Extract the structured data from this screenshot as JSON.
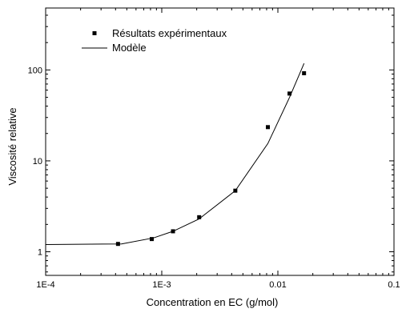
{
  "chart_data": {
    "type": "scatter",
    "xlabel": "Concentration en EC (g/mol)",
    "ylabel": "Viscosité relative",
    "xscale": "log",
    "yscale": "log",
    "xlim": [
      0.0001,
      0.1
    ],
    "ylim": [
      0.55,
      480
    ],
    "x_ticks": [
      {
        "value": 0.0001,
        "label": "1E-4"
      },
      {
        "value": 0.001,
        "label": "1E-3"
      },
      {
        "value": 0.01,
        "label": "0.01"
      },
      {
        "value": 0.1,
        "label": "0.1"
      }
    ],
    "y_ticks": [
      {
        "value": 1,
        "label": "1"
      },
      {
        "value": 10,
        "label": "10"
      },
      {
        "value": 100,
        "label": "100"
      }
    ],
    "legend_position": "top-left",
    "series": [
      {
        "name": "Résultats expérimentaux",
        "style": "markers",
        "x": [
          0.00042,
          0.00082,
          0.00125,
          0.0021,
          0.0043,
          0.0082,
          0.0126,
          0.0168
        ],
        "y": [
          1.22,
          1.38,
          1.68,
          2.4,
          4.7,
          23.5,
          55,
          92
        ]
      },
      {
        "name": "Modèle",
        "style": "line",
        "x": [
          0.0001,
          0.00045,
          0.00085,
          0.00125,
          0.0021,
          0.0043,
          0.0082,
          0.0126,
          0.0168
        ],
        "y": [
          1.2,
          1.22,
          1.42,
          1.68,
          2.3,
          4.7,
          15.5,
          50,
          118
        ]
      }
    ]
  }
}
